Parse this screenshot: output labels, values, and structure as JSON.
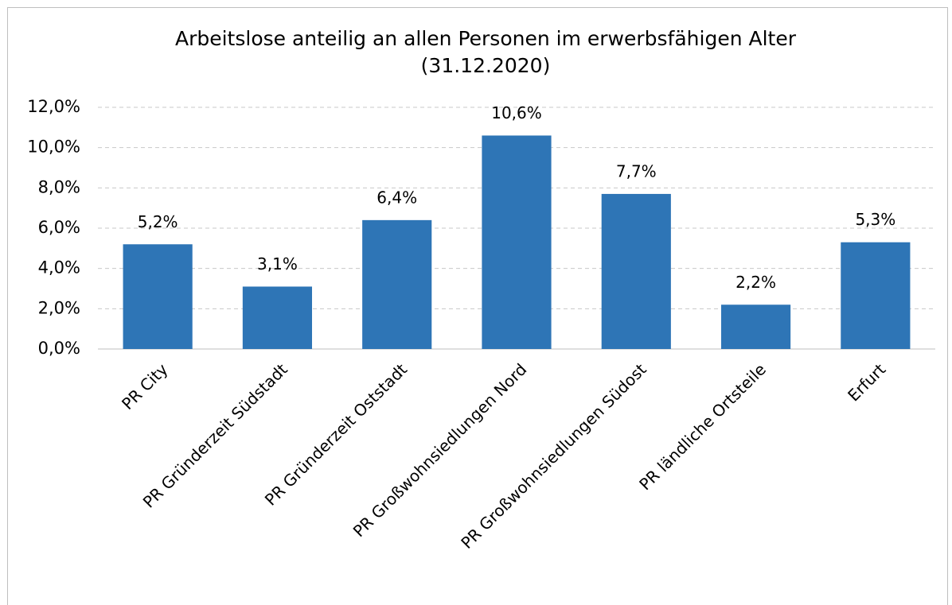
{
  "chart_data": {
    "type": "bar",
    "title": [
      "Arbeitslose anteilig an allen Personen im erwerbsfähigen Alter",
      "(31.12.2020)"
    ],
    "categories": [
      "PR City",
      "PR Gründerzeit Südstadt",
      "PR Gründerzeit Oststadt",
      "PR Großwohnsiedlungen Nord",
      "PR Großwohnsiedlungen Südost",
      "PR ländliche Ortsteile",
      "Erfurt"
    ],
    "values": [
      5.2,
      3.1,
      6.4,
      10.6,
      7.7,
      2.2,
      5.3
    ],
    "value_labels": [
      "5,2%",
      "3,1%",
      "6,4%",
      "10,6%",
      "7,7%",
      "2,2%",
      "5,3%"
    ],
    "color": "#2e75b6",
    "ylim": [
      0,
      12
    ],
    "yticks": [
      {
        "value": 0,
        "label": "0,0%"
      },
      {
        "value": 2,
        "label": "2,0%"
      },
      {
        "value": 4,
        "label": "4,0%"
      },
      {
        "value": 6,
        "label": "6,0%"
      },
      {
        "value": 8,
        "label": "8,0%"
      },
      {
        "value": 10,
        "label": "10,0%"
      },
      {
        "value": 12,
        "label": "12,0%"
      }
    ],
    "grid": true
  }
}
